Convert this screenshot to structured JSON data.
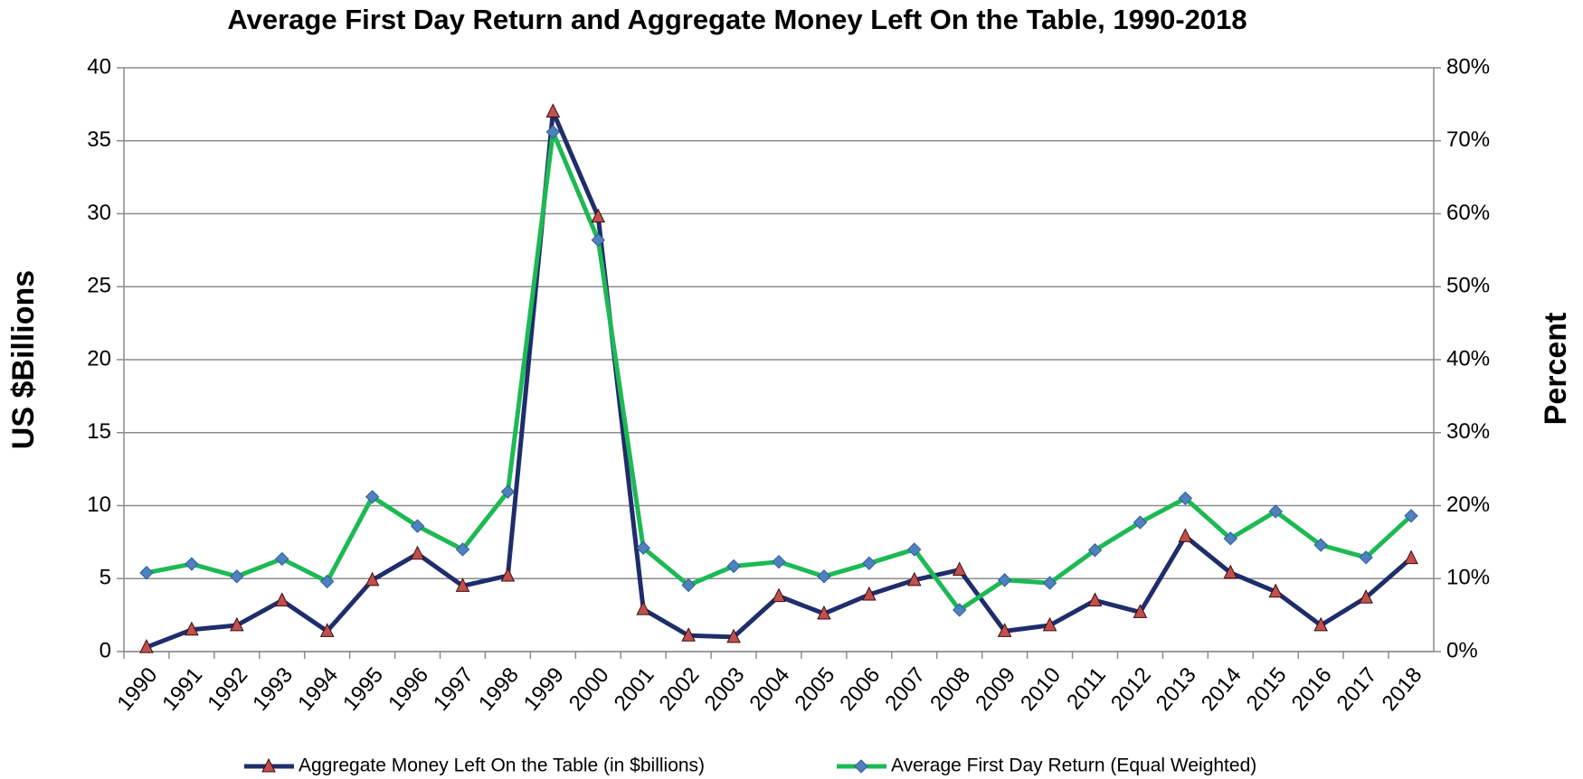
{
  "chart_data": {
    "type": "line",
    "title": "Average First Day Return and Aggregate Money Left On the Table, 1990-2018",
    "y_label": "US $Billions",
    "y2_label": "Percent",
    "categories": [
      "1990",
      "1991",
      "1992",
      "1993",
      "1994",
      "1995",
      "1996",
      "1997",
      "1998",
      "1999",
      "2000",
      "2001",
      "2002",
      "2003",
      "2004",
      "2005",
      "2006",
      "2007",
      "2008",
      "2009",
      "2010",
      "2011",
      "2012",
      "2013",
      "2014",
      "2015",
      "2016",
      "2017",
      "2018"
    ],
    "series": [
      {
        "name": "Aggregate Money Left On the Table (in $billions)",
        "color": "#1f2d6b",
        "marker": "triangle",
        "marker_color": "#c0504d",
        "values": [
          0.3,
          1.5,
          1.8,
          3.5,
          1.4,
          4.9,
          6.7,
          4.5,
          5.2,
          37.0,
          29.8,
          2.9,
          1.1,
          1.0,
          3.8,
          2.6,
          3.9,
          4.9,
          5.6,
          1.4,
          1.8,
          3.5,
          2.7,
          7.9,
          5.4,
          4.1,
          1.8,
          3.7,
          6.4
        ]
      },
      {
        "name": "Average First Day Return (Equal Weighted)",
        "color": "#1db954",
        "marker": "diamond",
        "marker_color": "#4f81bd",
        "axis": "y2",
        "values": [
          10.8,
          12.0,
          10.3,
          12.7,
          9.6,
          21.2,
          17.2,
          14.0,
          21.9,
          71.2,
          56.4,
          14.2,
          9.1,
          11.7,
          12.3,
          10.3,
          12.1,
          14.0,
          5.7,
          9.8,
          9.4,
          13.9,
          17.7,
          21.0,
          15.5,
          19.2,
          14.6,
          12.9,
          18.6
        ]
      }
    ],
    "ylim": [
      0,
      40
    ],
    "yticks": [
      0,
      5,
      10,
      15,
      20,
      25,
      30,
      35,
      40
    ],
    "y2lim": [
      0,
      80
    ],
    "y2ticks": [
      {
        "value": 0,
        "label": "0%"
      },
      {
        "value": 10,
        "label": "10%"
      },
      {
        "value": 20,
        "label": "20%"
      },
      {
        "value": 30,
        "label": "30%"
      },
      {
        "value": 40,
        "label": "40%"
      },
      {
        "value": 50,
        "label": "50%"
      },
      {
        "value": 60,
        "label": "60%"
      },
      {
        "value": 70,
        "label": "70%"
      },
      {
        "value": 80,
        "label": "80%"
      }
    ],
    "grid": true,
    "legend": "bottom"
  }
}
